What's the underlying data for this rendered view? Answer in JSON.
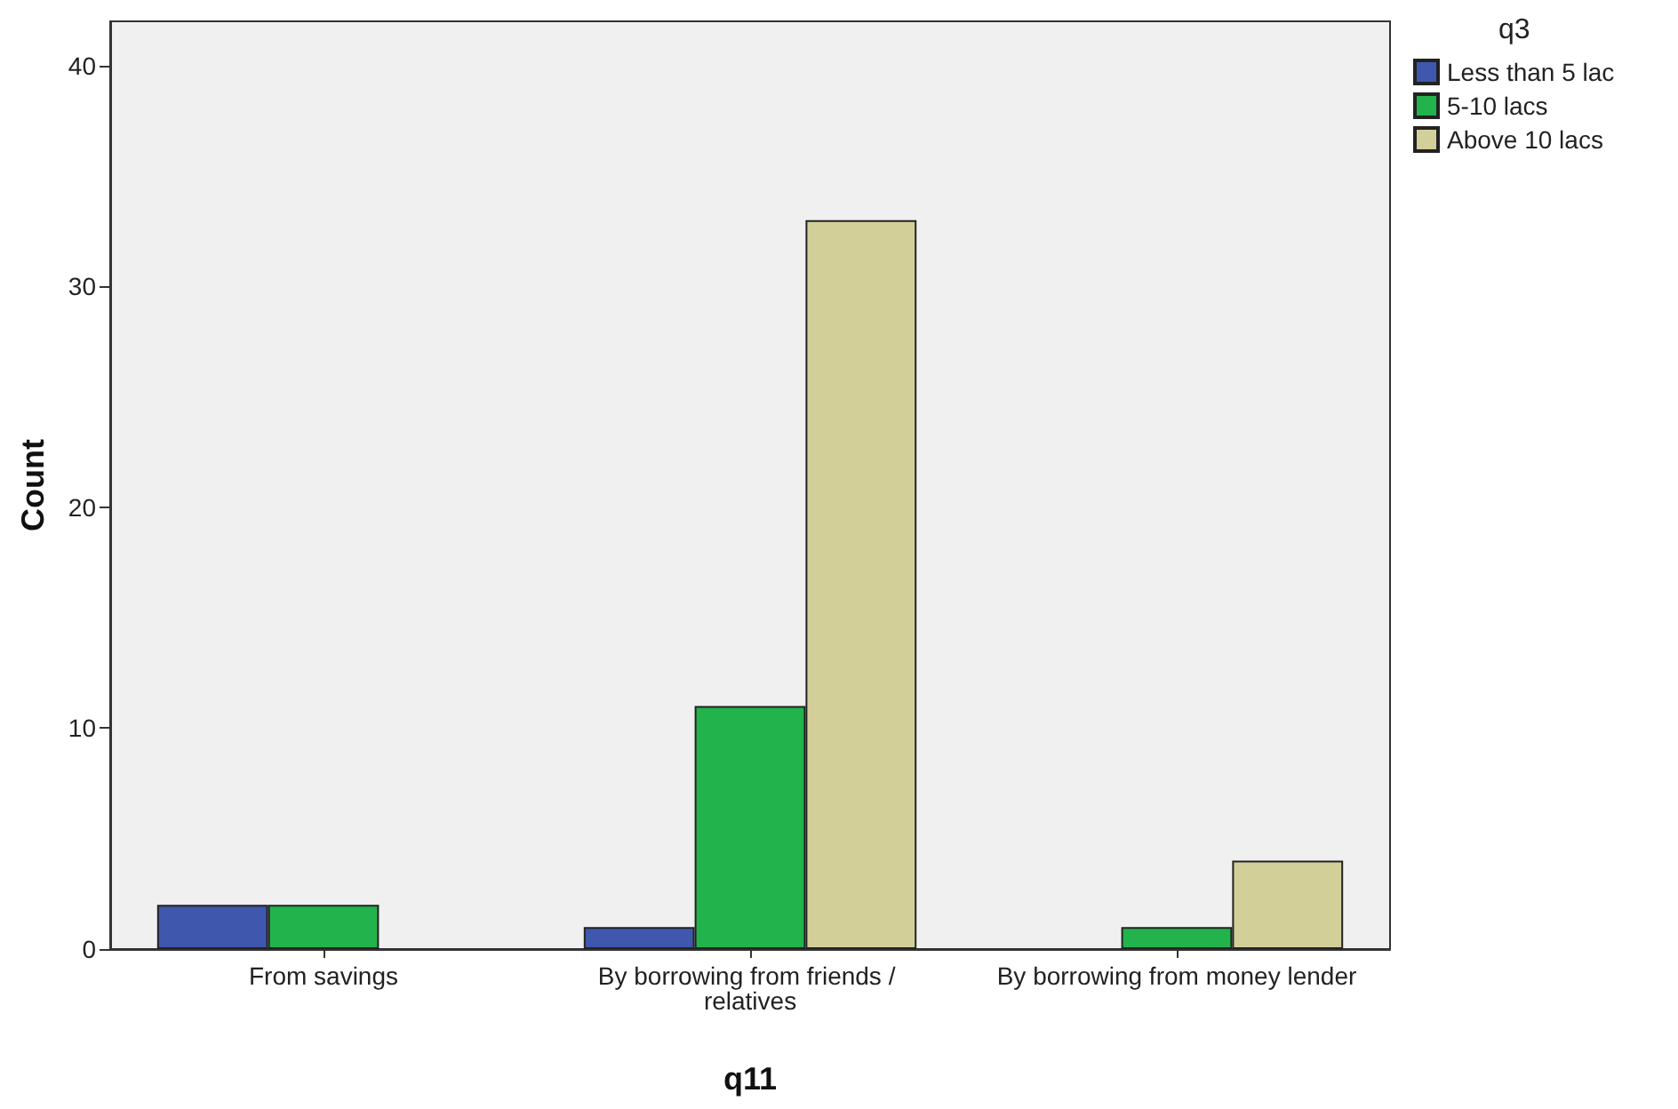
{
  "chart_data": {
    "type": "bar",
    "xlabel": "q11",
    "ylabel": "Count",
    "legend_title": "q3",
    "categories": [
      "From savings",
      "By borrowing from friends / relatives",
      "By borrowing from money lender"
    ],
    "series": [
      {
        "name": "Less than 5 lac",
        "color": "#3f58ad",
        "values": [
          2,
          1,
          null
        ]
      },
      {
        "name": "5-10 lacs",
        "color": "#22b34c",
        "values": [
          2,
          11,
          1
        ]
      },
      {
        "name": "Above 10 lacs",
        "color": "#d3cf98",
        "values": [
          null,
          33,
          4
        ]
      }
    ],
    "ylim": [
      0,
      42
    ],
    "yticks": [
      0,
      10,
      20,
      30,
      40
    ],
    "grid": false,
    "legend": "top right"
  }
}
